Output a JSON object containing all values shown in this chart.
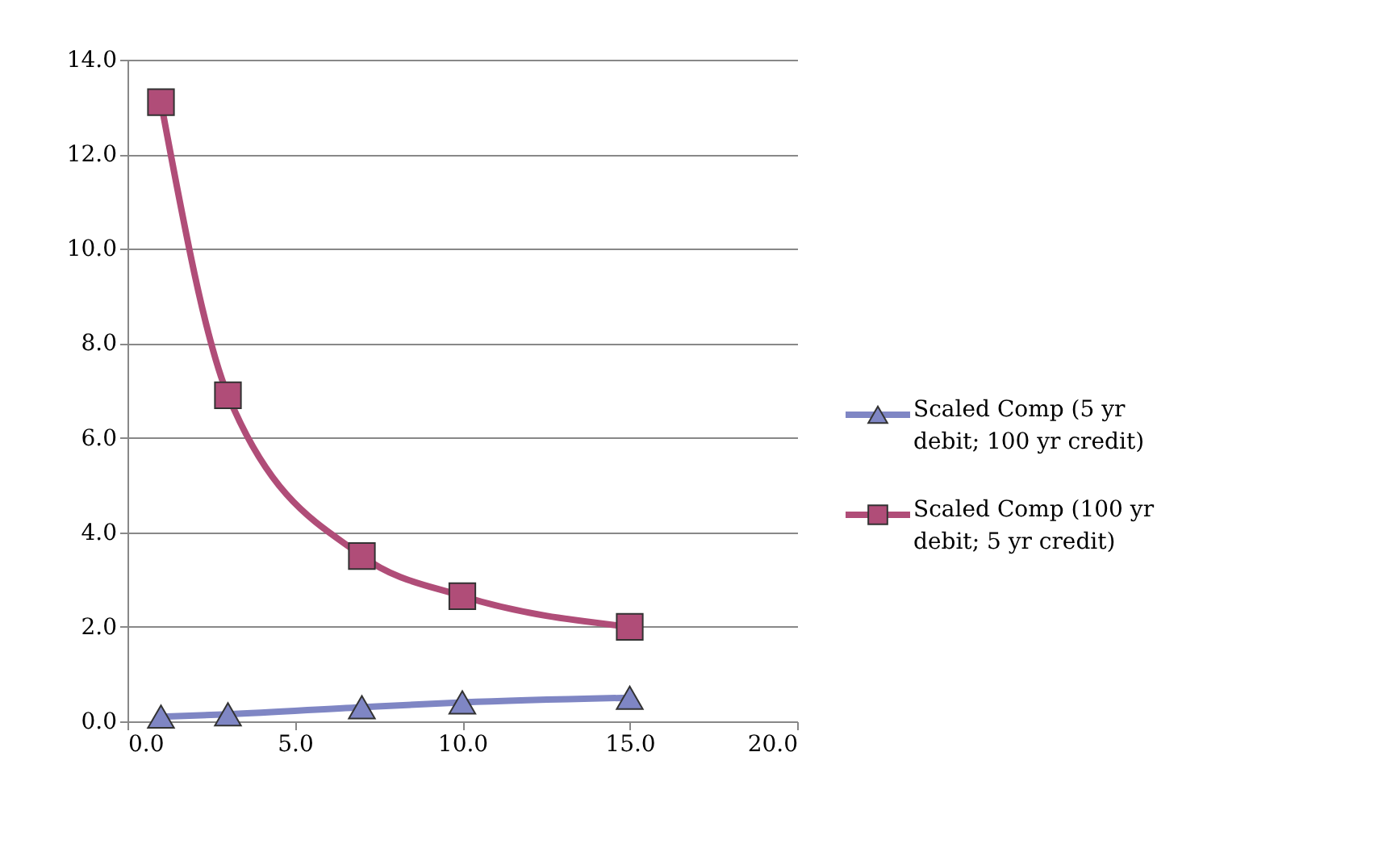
{
  "chart_data": {
    "type": "line",
    "x": [
      1,
      3,
      7,
      10,
      15
    ],
    "series": [
      {
        "name": "Scaled Comp (5 yr debit; 100 yr credit)",
        "color": "#7f86c4",
        "marker": "triangle",
        "values": [
          0.1,
          0.15,
          0.3,
          0.4,
          0.5
        ]
      },
      {
        "name": "Scaled Comp (100 yr debit; 5 yr credit)",
        "color": "#b04d78",
        "marker": "square",
        "values": [
          13.1,
          6.9,
          3.5,
          2.65,
          2.0
        ]
      }
    ],
    "xlim": [
      0,
      20
    ],
    "xticks": [
      {
        "value": 0,
        "label": "0.0"
      },
      {
        "value": 5,
        "label": "5.0"
      },
      {
        "value": 10,
        "label": "10.0"
      },
      {
        "value": 15,
        "label": "15.0"
      },
      {
        "value": 20,
        "label": "20.0"
      }
    ],
    "ylim": [
      0,
      14
    ],
    "yticks": [
      {
        "value": 0,
        "label": "0.0"
      },
      {
        "value": 2,
        "label": "2.0"
      },
      {
        "value": 4,
        "label": "4.0"
      },
      {
        "value": 6,
        "label": "6.0"
      },
      {
        "value": 8,
        "label": "8.0"
      },
      {
        "value": 10,
        "label": "10.0"
      },
      {
        "value": 12,
        "label": "12.0"
      },
      {
        "value": 14,
        "label": "14.0"
      }
    ],
    "grid": "y",
    "line_style": "solid",
    "legend": "right"
  }
}
